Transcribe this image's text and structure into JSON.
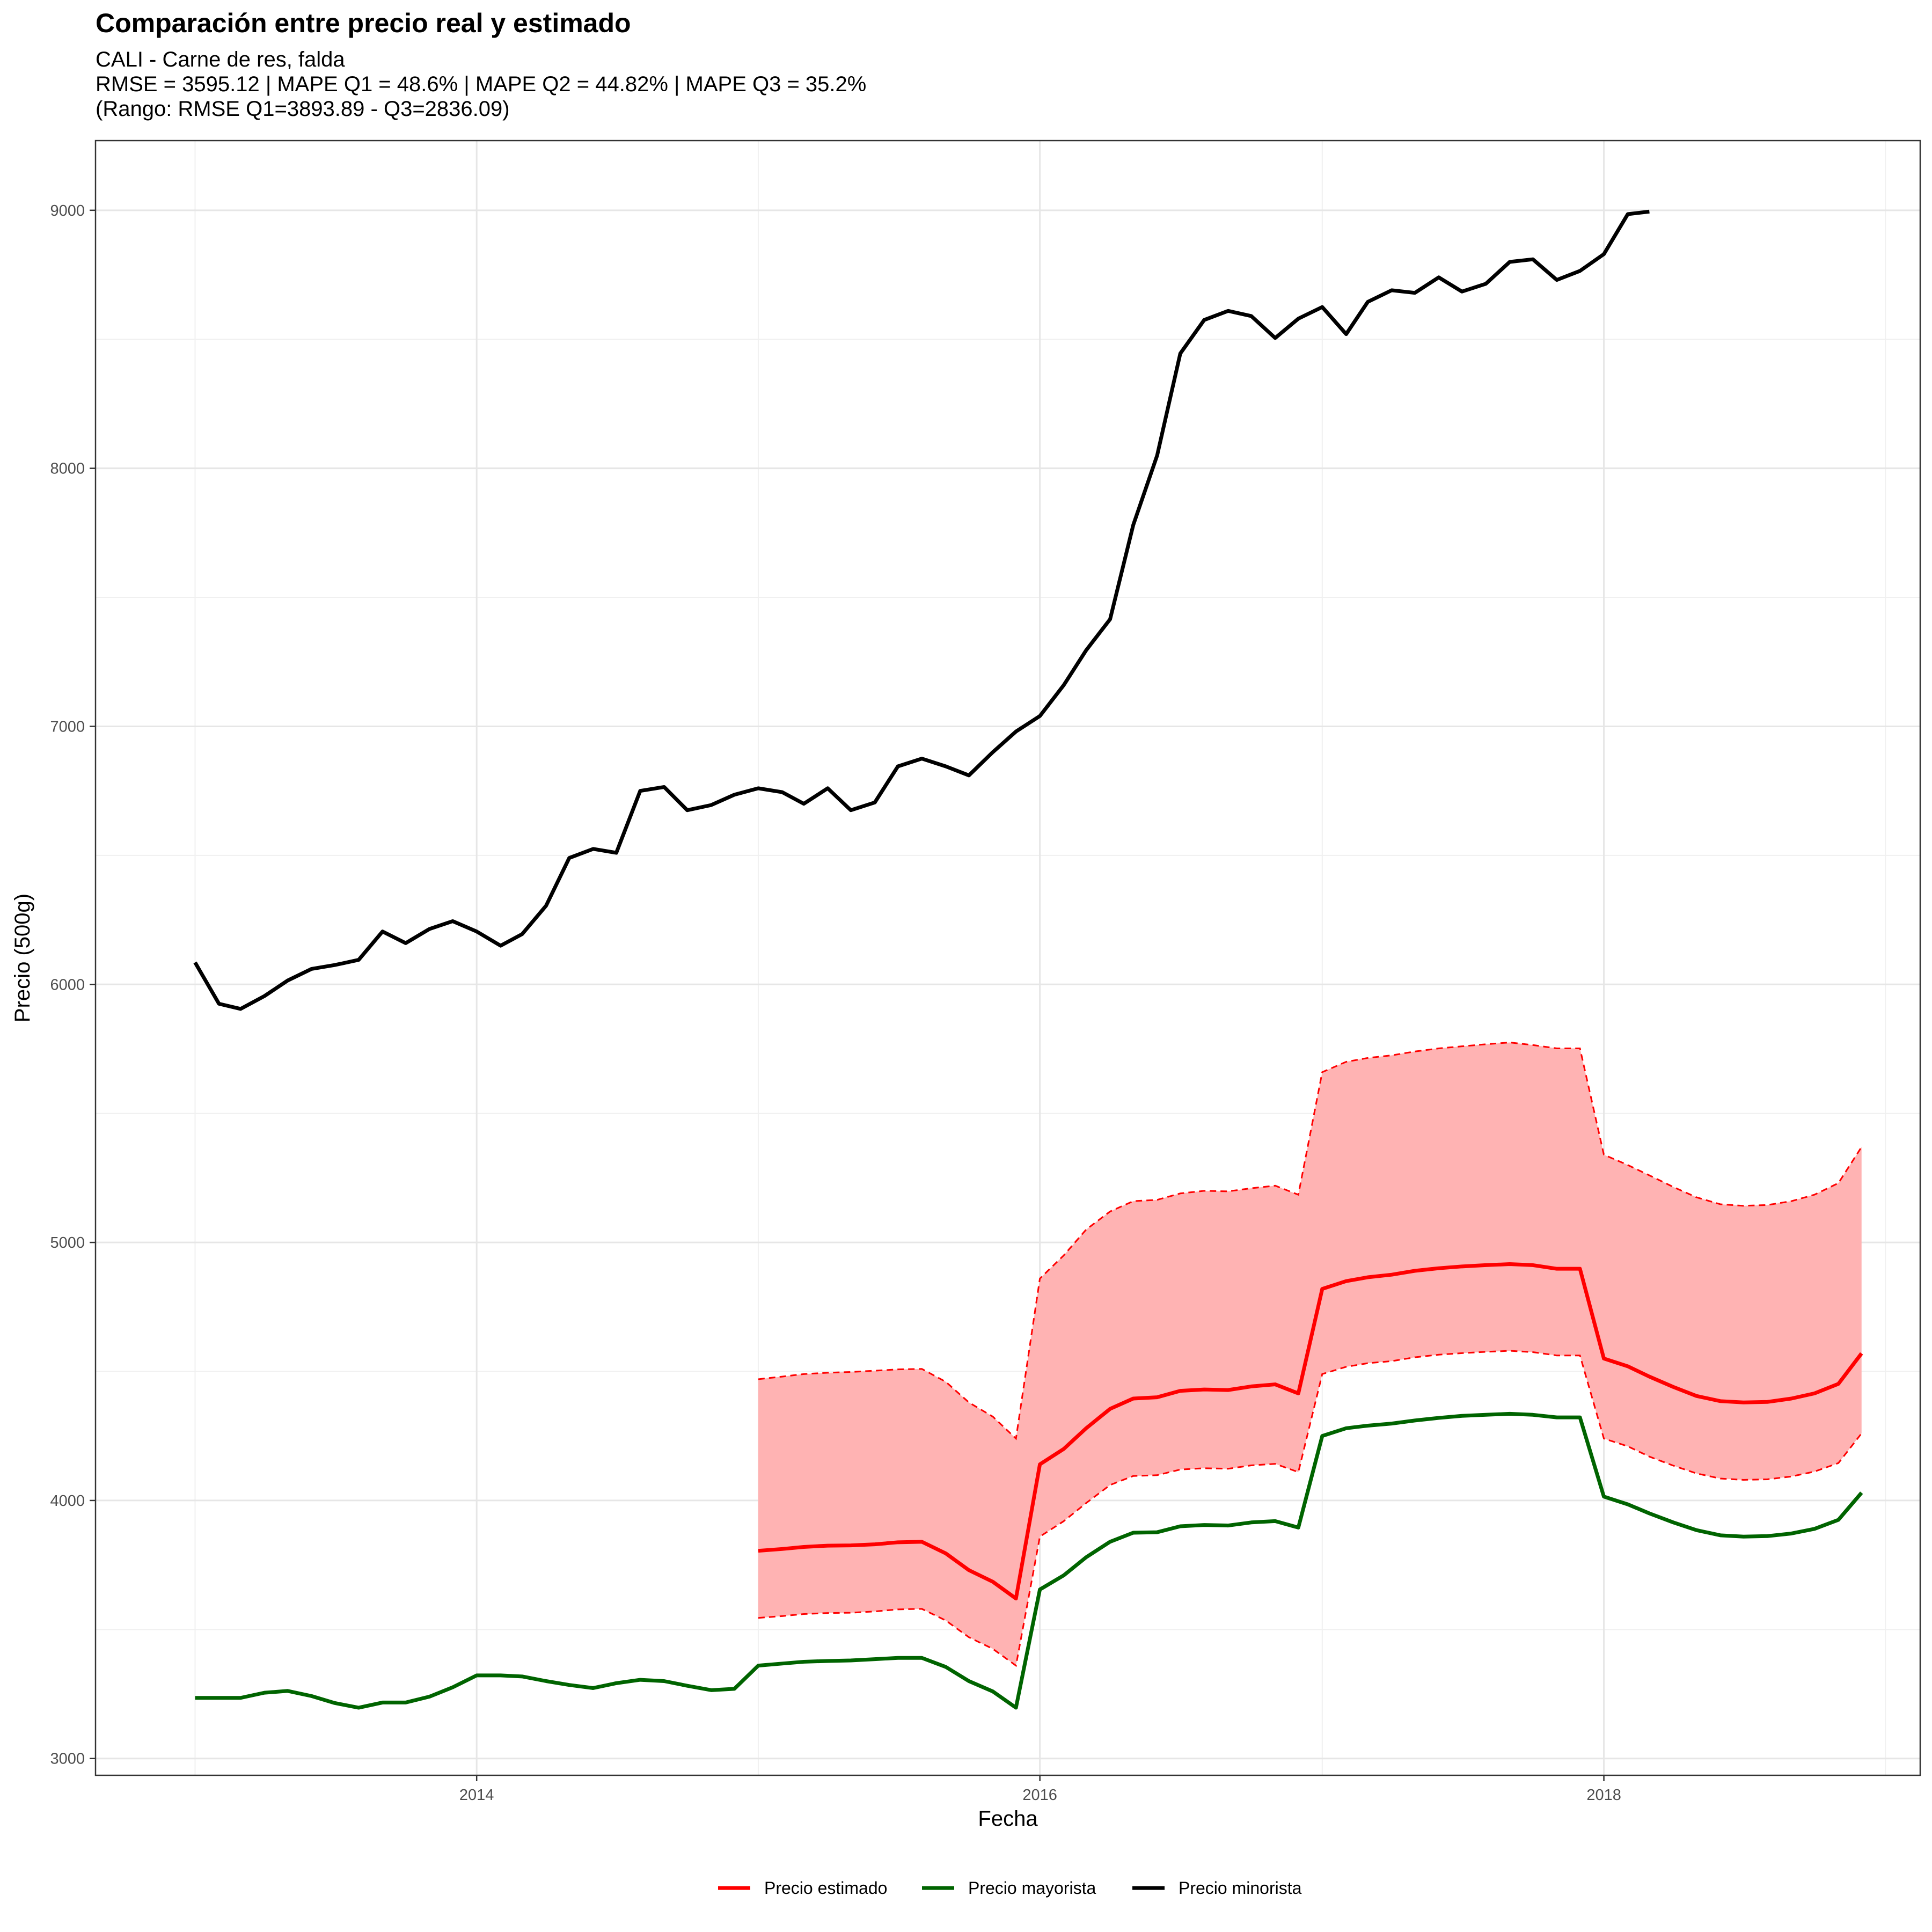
{
  "chart_data": {
    "type": "line",
    "title": "Comparación entre precio real y estimado",
    "subtitle_lines": [
      "CALI - Carne de res, falda",
      "RMSE = 3595.12 | MAPE Q1 = 48.6% | MAPE Q2 = 44.82% | MAPE Q3 = 35.2%",
      "(Rango: RMSE Q1=3893.89 - Q3=2836.09)"
    ],
    "xlabel": "Fecha",
    "ylabel": "Precio (500g)",
    "xlim": [
      "2012-08-25",
      "2019-02-15"
    ],
    "ylim": [
      2935,
      9270
    ],
    "x_ticks": [
      "2014-01-01",
      "2016-01-01",
      "2018-01-01"
    ],
    "x_tick_labels": [
      "2014",
      "2016",
      "2018"
    ],
    "y_ticks": [
      3000,
      4000,
      5000,
      6000,
      7000,
      8000,
      9000
    ],
    "y_tick_labels": [
      "3000",
      "4000",
      "5000",
      "6000",
      "7000",
      "8000",
      "9000"
    ],
    "grid": true,
    "legend_position": "bottom",
    "legend": [
      "Precio estimado",
      "Precio mayorista",
      "Precio minorista"
    ],
    "band_color": "#ffb3b3",
    "series": [
      {
        "name": "Precio minorista",
        "color": "#000000",
        "start": "2013-01",
        "values": [
          6085,
          5925,
          5905,
          5955,
          6015,
          6060,
          6075,
          6095,
          6205,
          6160,
          6215,
          6245,
          6205,
          6150,
          6195,
          6305,
          6490,
          6525,
          6510,
          6750,
          6765,
          6675,
          6695,
          6735,
          6760,
          6745,
          6700,
          6760,
          6675,
          6705,
          6845,
          6875,
          6845,
          6810,
          6900,
          6980,
          7040,
          7160,
          7295,
          7415,
          7780,
          8050,
          8445,
          8575,
          8610,
          8590,
          8505,
          8580,
          8625,
          8520,
          8645,
          8690,
          8680,
          8740,
          8685,
          8715,
          8800,
          8810,
          8730,
          8765,
          8830,
          8985,
          8995
        ]
      },
      {
        "name": "Precio mayorista",
        "color": "#006400",
        "start": "2013-01",
        "values": [
          3235,
          3235,
          3235,
          3255,
          3262,
          3242,
          3215,
          3197,
          3217,
          3217,
          3240,
          3276,
          3322,
          3322,
          3318,
          3300,
          3285,
          3273,
          3292,
          3305,
          3300,
          3282,
          3265,
          3270,
          3360,
          3368,
          3375,
          3378,
          3380,
          3385,
          3390,
          3390,
          3355,
          3300,
          3260,
          3197,
          3655,
          3710,
          3780,
          3840,
          3875,
          3877,
          3900,
          3905,
          3903,
          3915,
          3920,
          3895,
          4250,
          4280,
          4290,
          4298,
          4310,
          4320,
          4328,
          4332,
          4336,
          4332,
          4322,
          4322,
          4015,
          3985,
          3950,
          3915,
          3885,
          3865,
          3860,
          3862,
          3872,
          3890,
          3925,
          4030
        ]
      },
      {
        "name": "Precio estimado",
        "color": "#ff0000",
        "start": "2015-01",
        "values": [
          3805,
          3812,
          3820,
          3825,
          3826,
          3830,
          3838,
          3840,
          3795,
          3730,
          3685,
          3620,
          4140,
          4200,
          4280,
          4355,
          4395,
          4400,
          4425,
          4430,
          4428,
          4442,
          4450,
          4415,
          4820,
          4850,
          4865,
          4875,
          4890,
          4900,
          4907,
          4912,
          4916,
          4912,
          4898,
          4898,
          4550,
          4520,
          4480,
          4440,
          4405,
          4385,
          4380,
          4382,
          4395,
          4415,
          4452,
          4570
        ]
      },
      {
        "name": "Precio estimado (banda superior)",
        "color": "#ff0000",
        "start": "2015-01",
        "values": [
          4470,
          4480,
          4490,
          4495,
          4498,
          4503,
          4508,
          4510,
          4460,
          4380,
          4325,
          4240,
          4860,
          4950,
          5050,
          5120,
          5160,
          5165,
          5190,
          5200,
          5198,
          5210,
          5220,
          5185,
          5660,
          5700,
          5715,
          5725,
          5740,
          5752,
          5760,
          5768,
          5775,
          5765,
          5752,
          5752,
          5340,
          5300,
          5260,
          5215,
          5175,
          5148,
          5142,
          5145,
          5160,
          5185,
          5230,
          5370
        ]
      },
      {
        "name": "Precio estimado (banda inferior)",
        "color": "#ff0000",
        "start": "2015-01",
        "values": [
          3545,
          3552,
          3560,
          3564,
          3565,
          3570,
          3578,
          3580,
          3535,
          3470,
          3425,
          3360,
          3860,
          3920,
          3990,
          4060,
          4095,
          4098,
          4120,
          4125,
          4123,
          4136,
          4142,
          4110,
          4490,
          4518,
          4532,
          4540,
          4555,
          4565,
          4571,
          4576,
          4580,
          4575,
          4562,
          4562,
          4240,
          4210,
          4170,
          4135,
          4105,
          4085,
          4080,
          4082,
          4093,
          4112,
          4145,
          4260
        ]
      }
    ]
  }
}
